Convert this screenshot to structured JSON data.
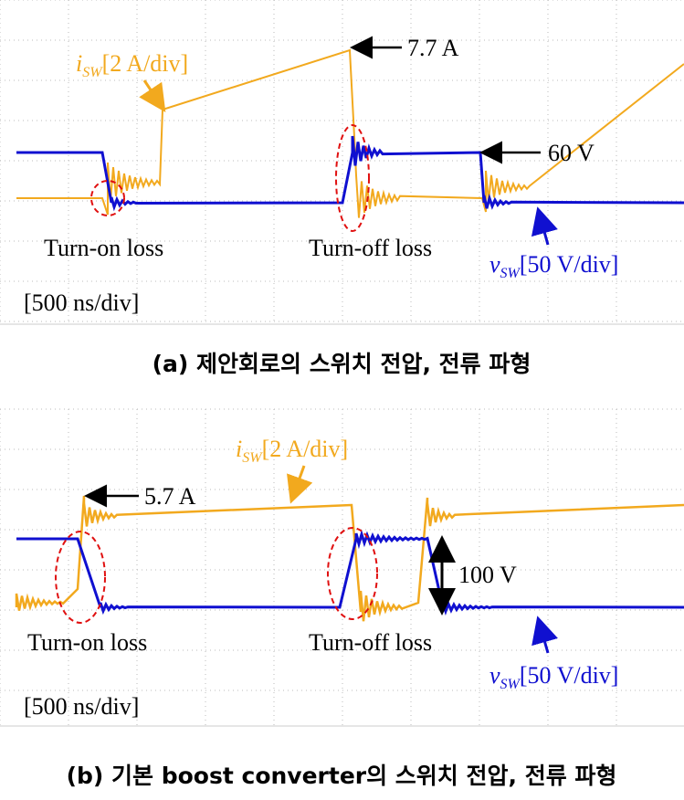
{
  "panels": [
    {
      "current_symbol": "i",
      "current_sub": "SW",
      "current_scale": "[2 A/div]",
      "peak_current": "7.7 A",
      "voltage_level": "60 V",
      "turn_on": "Turn-on loss",
      "turn_off": "Turn-off loss",
      "voltage_symbol": "v",
      "voltage_sub": "SW",
      "voltage_scale": "[50 V/div]",
      "time_scale": "[500 ns/div]",
      "caption": "(a) 제안회로의 스위치 전압, 전류 파형"
    },
    {
      "current_symbol": "i",
      "current_sub": "SW",
      "current_scale": "[2 A/div]",
      "peak_current": "5.7 A",
      "voltage_level": "100 V",
      "turn_on": "Turn-on loss",
      "turn_off": "Turn-off loss",
      "voltage_symbol": "v",
      "voltage_sub": "SW",
      "voltage_scale": "[50 V/div]",
      "time_scale": "[500 ns/div]",
      "caption": "(b) 기본 boost converter의 스위치 전압, 전류 파형"
    }
  ]
}
